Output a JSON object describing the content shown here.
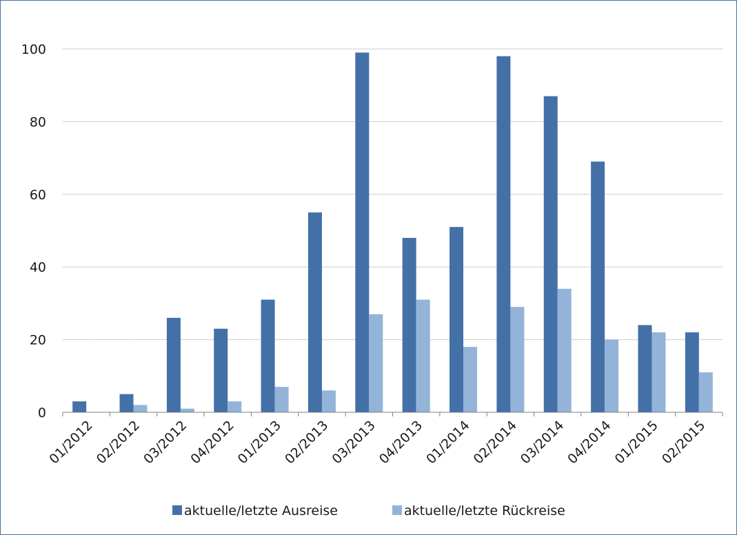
{
  "chart_data": {
    "type": "bar",
    "categories": [
      "01/2012",
      "02/2012",
      "03/2012",
      "04/2012",
      "01/2013",
      "02/2013",
      "03/2013",
      "04/2013",
      "01/2014",
      "02/2014",
      "03/2014",
      "04/2014",
      "01/2015",
      "02/2015"
    ],
    "series": [
      {
        "name": "aktuelle/letzte Ausreise",
        "color": "#4470a8",
        "values": [
          3,
          5,
          26,
          23,
          31,
          55,
          99,
          48,
          51,
          98,
          87,
          69,
          24,
          22
        ]
      },
      {
        "name": "aktuelle/letzte Rückreise",
        "color": "#94b3d9",
        "values": [
          0,
          2,
          1,
          3,
          7,
          6,
          27,
          31,
          18,
          29,
          34,
          20,
          22,
          11
        ]
      }
    ],
    "ylim": [
      0,
      100
    ],
    "yticks": [
      "0",
      "20",
      "40",
      "60",
      "80",
      "100"
    ],
    "grid": true,
    "legend_position": "bottom"
  }
}
